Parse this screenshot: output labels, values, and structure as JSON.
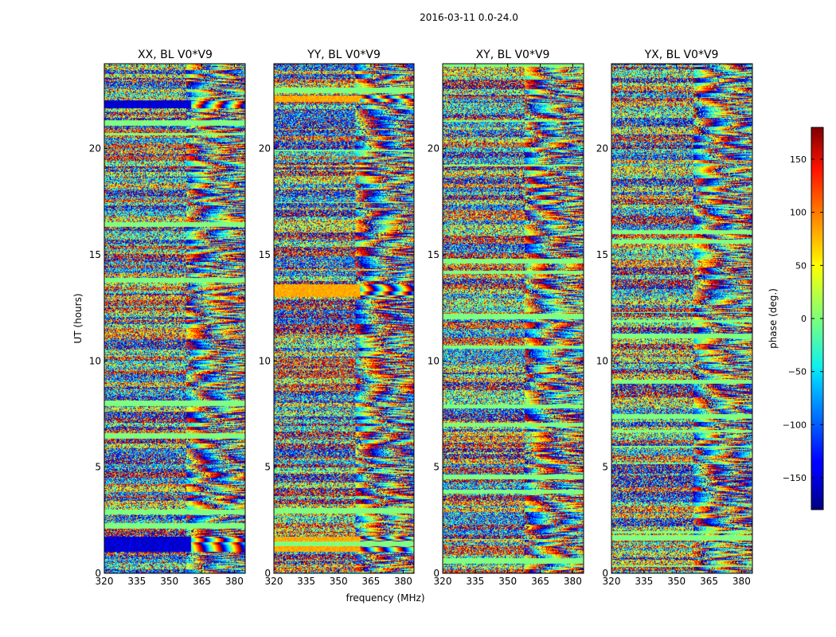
{
  "chart_data": {
    "type": "heatmap",
    "suptitle": "2016-03-11 0.0-24.0",
    "xlabel": "frequency (MHz)",
    "ylabel": "UT (hours)",
    "xlim": [
      320,
      385
    ],
    "ylim": [
      0,
      24
    ],
    "xticks": [
      320,
      335,
      350,
      365,
      380
    ],
    "yticks": [
      0,
      5,
      10,
      15,
      20
    ],
    "panels": [
      {
        "title": "XX, BL V0*V9",
        "seed": 11,
        "blue_bands": [
          [
            1.0,
            1.7
          ],
          [
            21.9,
            22.3
          ]
        ],
        "gold_bands": []
      },
      {
        "title": "YY, BL V0*V9",
        "seed": 23,
        "blue_bands": [],
        "gold_bands": [
          [
            1.0,
            1.7
          ],
          [
            13.0,
            13.6
          ],
          [
            22.2,
            22.5
          ]
        ]
      },
      {
        "title": "XY, BL V0*V9",
        "seed": 37,
        "blue_bands": [],
        "gold_bands": []
      },
      {
        "title": "YX, BL V0*V9",
        "seed": 51,
        "blue_bands": [],
        "gold_bands": []
      }
    ],
    "colorbar": {
      "label": "phase (deg.)",
      "range": [
        -180,
        180
      ],
      "ticks": [
        150,
        100,
        50,
        0,
        -50,
        -100,
        -150
      ],
      "tick_labels": [
        "150",
        "100",
        "50",
        "0",
        "−50",
        "−100",
        "−150"
      ],
      "colormap": "jet"
    }
  }
}
